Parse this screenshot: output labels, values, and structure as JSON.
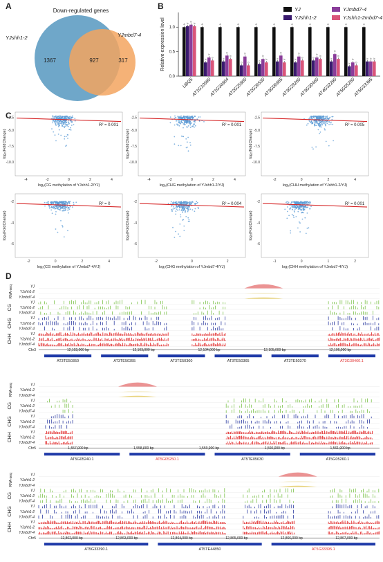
{
  "panels": {
    "A": "A",
    "B": "B",
    "C": "C",
    "D": "D"
  },
  "venn": {
    "title": "Down-regulated genes",
    "left_label": "YJshh1-2",
    "right_label": "YJmbd7-4",
    "left_only": "1367",
    "overlap": "927",
    "right_only": "317",
    "colors": {
      "left": "#6fa7c9",
      "right": "#f3a45f",
      "overlap": "#c99a72"
    }
  },
  "chart_data": [
    {
      "type": "bar",
      "ylabel": "Relative expression level",
      "ylim": [
        0,
        1.3
      ],
      "yticks": [
        "0.0",
        "0.5",
        "1.0"
      ],
      "categories": [
        "UBQ5",
        "AT1G10690",
        "AT1G34904",
        "AT2G25900",
        "AT2G26530",
        "AT3G06955",
        "AT3G29260",
        "AT3G30460",
        "AT4G32290",
        "AT5G05250",
        "AT5G33395"
      ],
      "series": [
        {
          "name": "YJ",
          "color": "#111111",
          "values": [
            1.0,
            1.0,
            1.0,
            1.0,
            1.0,
            1.0,
            1.0,
            1.0,
            1.0,
            1.0,
            1.0
          ]
        },
        {
          "name": "YJshh1-2",
          "color": "#3a1a6e",
          "values": [
            1.02,
            0.28,
            0.3,
            0.22,
            0.25,
            0.3,
            0.28,
            0.32,
            0.3,
            0.2,
            0.3
          ]
        },
        {
          "name": "YJmbd7-4",
          "color": "#8a3d9a",
          "values": [
            1.05,
            0.38,
            0.42,
            0.4,
            0.35,
            0.42,
            0.4,
            0.38,
            0.45,
            0.28,
            0.3
          ]
        },
        {
          "name": "YJshh1-2mbd7-4",
          "color": "#d9557a",
          "values": [
            1.02,
            0.32,
            0.35,
            0.22,
            0.28,
            0.28,
            0.32,
            0.35,
            0.35,
            0.22,
            0.3
          ]
        }
      ],
      "legend_position": "top-right"
    },
    {
      "type": "scatter",
      "xlabel": "log₂(CG methylation of YJshh1-2/YJ)",
      "ylabel": "log₂(FoldChange)",
      "r2": "R² = 0.001",
      "xticks": [
        "-4",
        "-2",
        "0",
        "2",
        "4"
      ],
      "yticks": [
        "-2.5",
        "-5.0",
        "-7.5",
        "-10.0"
      ]
    },
    {
      "type": "scatter",
      "xlabel": "log₂(CHG methylation of YJshh1-2/YJ)",
      "ylabel": "log₂(FoldChange)",
      "r2": "R² = 0.001",
      "xticks": [
        "-4",
        "-2",
        "0",
        "2",
        "4"
      ],
      "yticks": [
        "-2.5",
        "-5.0",
        "-7.5",
        "-10.0"
      ]
    },
    {
      "type": "scatter",
      "xlabel": "log₂(CHH methylation of YJshh1-2/YJ)",
      "ylabel": "log₂(FoldChange)",
      "r2": "R² = 0.005",
      "xticks": [
        "-2",
        "0",
        "2",
        "4"
      ],
      "yticks": [
        "-2.5",
        "-5.0",
        "-7.5",
        "-10.0"
      ]
    },
    {
      "type": "scatter",
      "xlabel": "log₂(CG methylation of YJmbd7-4/YJ)",
      "ylabel": "log₂(FoldChange)",
      "r2": "R² = 0",
      "xticks": [
        "-2",
        "0",
        "2",
        "4"
      ],
      "yticks": [
        "-2",
        "-4",
        "-6"
      ]
    },
    {
      "type": "scatter",
      "xlabel": "log₂(CHG methylation of YJmbd7-4/YJ)",
      "ylabel": "log₂(FoldChange)",
      "r2": "R² = 0.004",
      "xticks": [
        "-2",
        "0",
        "2"
      ],
      "yticks": [
        "-2",
        "-4",
        "-6"
      ]
    },
    {
      "type": "scatter",
      "xlabel": "log₂(CHH methylation of YJmbd7-4/YJ)",
      "ylabel": "log₂(FoldChange)",
      "r2": "R² = 0.001",
      "xticks": [
        "-1",
        "0",
        "1",
        "2"
      ],
      "yticks": [
        "-2",
        "-4",
        "-6"
      ]
    }
  ],
  "tracks": {
    "sample_labels": [
      "YJ",
      "YJshh1-2",
      "YJmbd7-4"
    ],
    "group_labels": [
      "RNA-seq",
      "CG",
      "CHG",
      "CHH"
    ],
    "colors": {
      "rna": "#e88080",
      "rna_weak": "#e8d070",
      "cg": "#7cc24a",
      "chg": "#2b3aa0",
      "chh": "#e02020",
      "gene": "#1f3aa8",
      "highlight": "#e03030"
    },
    "loci": [
      {
        "chrom": "Chr3",
        "coords": [
          "12,102,000 bp",
          "12,103,000 bp",
          "12,104,000 bp",
          "12,105,000 bp",
          "12,106,000 bp"
        ],
        "genes": [
          {
            "name": "AT3TE50350",
            "hl": false
          },
          {
            "name": "AT3TE50355",
            "hl": false
          },
          {
            "name": "AT3TE50360",
            "hl": false
          },
          {
            "name": "AT3TE50365",
            "hl": false
          },
          {
            "name": "AT3TE50370",
            "hl": false
          },
          {
            "name": "AT3G30460.1",
            "hl": true
          }
        ]
      },
      {
        "chrom": "Chr5",
        "coords": [
          "1,557,000 bp",
          "1,558,000 bp",
          "1,559,000 bp",
          "1,560,000 bp",
          "1,561,000 bp"
        ],
        "genes": [
          {
            "name": "AT5G05240.1",
            "hl": false
          },
          {
            "name": "AT5G05250.1",
            "hl": true
          },
          {
            "name": "AT5TE05630",
            "hl": false
          },
          {
            "name": "AT5G05260.1",
            "hl": false
          }
        ]
      },
      {
        "chrom": "Chr5",
        "coords": [
          "12,862,000 bp",
          "12,863,000 bp",
          "12,864,000 bp",
          "12,865,000 bp",
          "12,866,000 bp",
          "12,867,000 bp"
        ],
        "genes": [
          {
            "name": "AT5G33390.1",
            "hl": false
          },
          {
            "name": "AT5TE44850",
            "hl": false
          },
          {
            "name": "AT5G33395.1",
            "hl": true
          }
        ]
      }
    ]
  }
}
